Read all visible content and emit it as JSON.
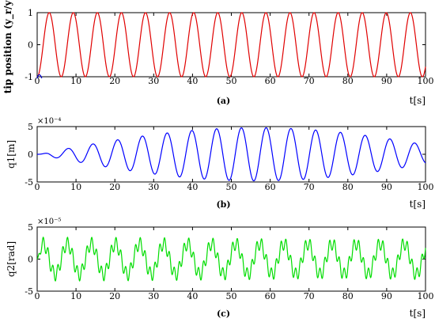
{
  "chart_data": [
    {
      "type": "line",
      "panel_label": "(a)",
      "ylabel": "tip position (y_r/y)",
      "xlabel": "t[s]",
      "xlim": [
        0,
        100
      ],
      "ylim": [
        -1,
        1
      ],
      "x_ticks": [
        "0",
        "10",
        "20",
        "30",
        "40",
        "50",
        "60",
        "70",
        "80",
        "90",
        "100"
      ],
      "y_ticks": [
        "-1",
        "0",
        "1"
      ],
      "exponent": "",
      "series": [
        {
          "color": "#e00000",
          "form": "sine",
          "amplitude": 1,
          "period": 6.2,
          "phase_deg": -90
        },
        {
          "color": "#0000cc",
          "form": "transient",
          "note": "brief initial response near t=0"
        }
      ]
    },
    {
      "type": "line",
      "panel_label": "(b)",
      "ylabel": "q1[m]",
      "xlabel": "t[s]",
      "xlim": [
        0,
        100
      ],
      "ylim": [
        -5,
        5
      ],
      "x_ticks": [
        "0",
        "10",
        "20",
        "30",
        "40",
        "50",
        "60",
        "70",
        "80",
        "90",
        "100"
      ],
      "y_ticks": [
        "-5",
        "0",
        "5"
      ],
      "exponent": "×10⁻⁴",
      "series": [
        {
          "color": "#0000ff",
          "form": "beat",
          "components": [
            {
              "amp": 2.4,
              "period": 6.2
            },
            {
              "amp": 2.4,
              "period": 6.56
            }
          ]
        }
      ]
    },
    {
      "type": "line",
      "panel_label": "(c)",
      "ylabel": "q2[rad]",
      "xlabel": "t[s]",
      "xlim": [
        0,
        100
      ],
      "ylim": [
        -5,
        5
      ],
      "x_ticks": [
        "0",
        "10",
        "20",
        "30",
        "40",
        "50",
        "60",
        "70",
        "80",
        "90",
        "100"
      ],
      "y_ticks": [
        "-5",
        "0",
        "5"
      ],
      "exponent": "×10⁻⁵",
      "series": [
        {
          "color": "#00dd00",
          "form": "multi-sine",
          "components": [
            {
              "amp": 2.4,
              "period": 6.2
            },
            {
              "amp": 1.0,
              "period": 1.25
            }
          ]
        }
      ]
    }
  ]
}
